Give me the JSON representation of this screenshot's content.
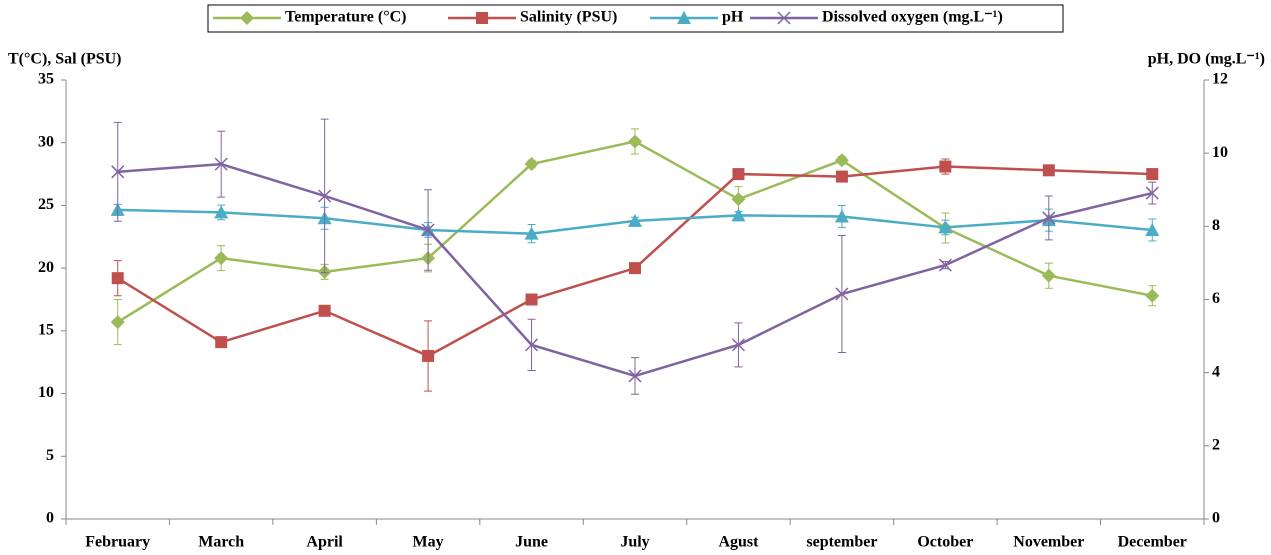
{
  "chart_data": {
    "type": "line",
    "y_label": "T(°C), Sal (PSU)",
    "y2_label": "pH, DO (mg.L⁻¹)",
    "categories": [
      "February",
      "March",
      "April",
      "May",
      "June",
      "July",
      "Agust",
      "september",
      "October",
      "November",
      "December"
    ],
    "ylim": [
      0,
      35
    ],
    "yticks": [
      0,
      5,
      10,
      15,
      20,
      25,
      30,
      35
    ],
    "y2lim": [
      0,
      12
    ],
    "y2ticks": [
      0,
      2,
      4,
      6,
      8,
      10,
      12
    ],
    "series": [
      {
        "name": "Temperature (°C)",
        "color": "#9bbb59",
        "marker": "diamond",
        "axis": "y",
        "values": [
          15.7,
          20.8,
          19.7,
          20.8,
          28.3,
          30.1,
          25.5,
          28.6,
          23.2,
          19.4,
          17.8
        ],
        "errors": [
          1.8,
          1.0,
          0.6,
          1.1,
          0.3,
          1.0,
          1.0,
          0.3,
          1.2,
          1.0,
          0.8
        ]
      },
      {
        "name": "Salinity (PSU)",
        "color": "#c0504d",
        "marker": "square",
        "axis": "y",
        "values": [
          19.2,
          14.1,
          16.6,
          13.0,
          17.5,
          20.0,
          27.5,
          27.3,
          28.1,
          27.8,
          27.5
        ],
        "errors": [
          1.4,
          0.3,
          0.4,
          2.8,
          0.3,
          0.3,
          0.3,
          0.3,
          0.6,
          0.4,
          0.3
        ]
      },
      {
        "name": "pH",
        "color": "#4bacc6",
        "marker": "triangle",
        "axis": "y2",
        "values": [
          8.45,
          8.38,
          8.22,
          7.9,
          7.8,
          8.15,
          8.3,
          8.27,
          7.97,
          8.17,
          7.9
        ],
        "errors": [
          0.15,
          0.2,
          0.3,
          0.2,
          0.25,
          0.1,
          0.1,
          0.3,
          0.2,
          0.3,
          0.3
        ]
      },
      {
        "name": "Dissolved oxygen (mg.L⁻¹)",
        "color": "#8064a2",
        "marker": "x",
        "axis": "y2",
        "values": [
          9.49,
          9.7,
          8.83,
          7.9,
          4.76,
          3.91,
          4.76,
          6.15,
          6.94,
          8.23,
          8.91
        ],
        "errors": [
          1.35,
          0.9,
          2.1,
          1.1,
          0.7,
          0.5,
          0.6,
          1.6,
          0.1,
          0.6,
          0.3
        ]
      }
    ]
  }
}
